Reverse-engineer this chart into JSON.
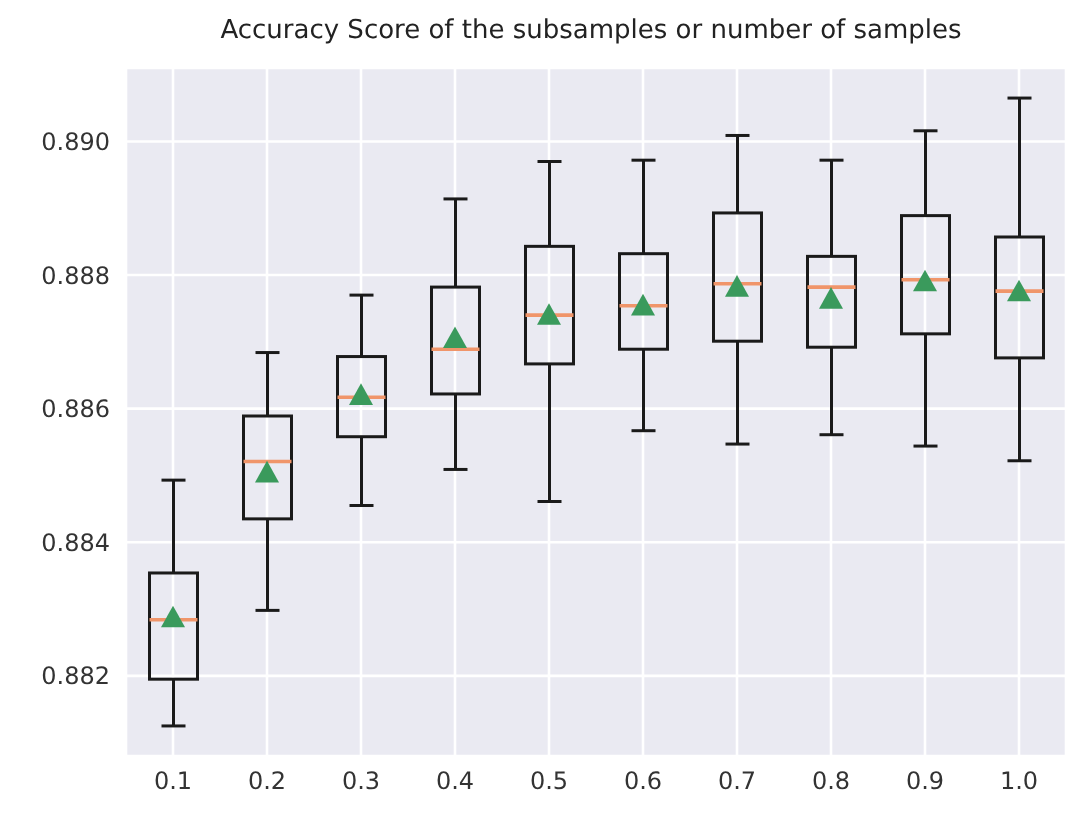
{
  "chart_data": {
    "type": "box",
    "title": "Accuracy Score of the subsamples or number of samples",
    "categories": [
      "0.1",
      "0.2",
      "0.3",
      "0.4",
      "0.5",
      "0.6",
      "0.7",
      "0.8",
      "0.9",
      "1.0"
    ],
    "series": [
      {
        "color": "#1a1a1a",
        "boxes": [
          {
            "low": 0.88125,
            "q1": 0.88195,
            "median": 0.88284,
            "q3": 0.88354,
            "high": 0.88493,
            "mean": 0.88287
          },
          {
            "low": 0.88298,
            "q1": 0.88435,
            "median": 0.88521,
            "q3": 0.88589,
            "high": 0.88684,
            "mean": 0.88504
          },
          {
            "low": 0.88455,
            "q1": 0.88558,
            "median": 0.88617,
            "q3": 0.88678,
            "high": 0.8877,
            "mean": 0.8862
          },
          {
            "low": 0.88509,
            "q1": 0.88622,
            "median": 0.88689,
            "q3": 0.88782,
            "high": 0.88914,
            "mean": 0.88705
          },
          {
            "low": 0.88461,
            "q1": 0.88667,
            "median": 0.8874,
            "q3": 0.88843,
            "high": 0.8897,
            "mean": 0.8874
          },
          {
            "low": 0.88567,
            "q1": 0.88689,
            "median": 0.88754,
            "q3": 0.88832,
            "high": 0.88972,
            "mean": 0.88754
          },
          {
            "low": 0.88547,
            "q1": 0.88701,
            "median": 0.88787,
            "q3": 0.88893,
            "high": 0.89009,
            "mean": 0.88782
          },
          {
            "low": 0.88561,
            "q1": 0.88692,
            "median": 0.88782,
            "q3": 0.88828,
            "high": 0.88972,
            "mean": 0.88764
          },
          {
            "low": 0.88544,
            "q1": 0.88712,
            "median": 0.88793,
            "q3": 0.88889,
            "high": 0.89016,
            "mean": 0.8879
          },
          {
            "low": 0.88522,
            "q1": 0.88676,
            "median": 0.88776,
            "q3": 0.88857,
            "high": 0.89065,
            "mean": 0.88775
          }
        ]
      }
    ],
    "ylim": [
      0.8808,
      0.8911
    ],
    "yticks": [
      {
        "value": 0.882,
        "label": "0.882"
      },
      {
        "value": 0.884,
        "label": "0.884"
      },
      {
        "value": 0.886,
        "label": "0.886"
      },
      {
        "value": 0.888,
        "label": "0.888"
      },
      {
        "value": 0.89,
        "label": "0.890"
      }
    ],
    "grid": true,
    "marker": "triangle"
  }
}
